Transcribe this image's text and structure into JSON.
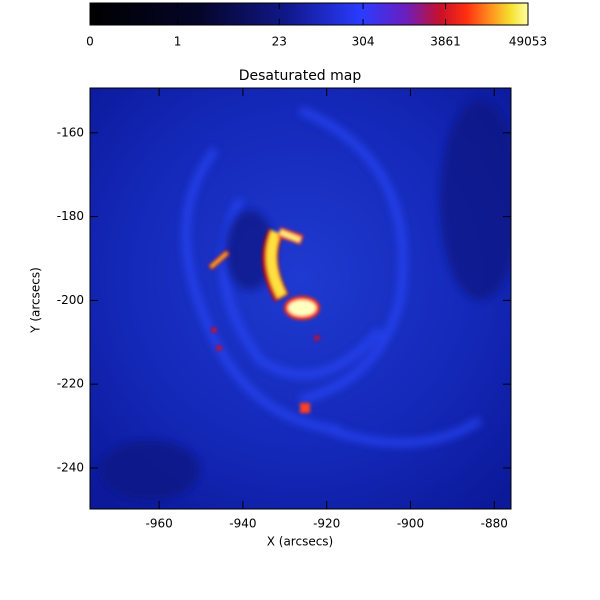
{
  "chart_data": {
    "type": "image-map",
    "title": "Desaturated map",
    "x_label": "X (arcsecs)",
    "y_label": "Y (arcsecs)",
    "xlim": [
      -976.5,
      -876.0
    ],
    "ylim": [
      -249.8,
      -149.3
    ],
    "xticks": [
      -960,
      -940,
      -920,
      -900,
      -880
    ],
    "yticks": [
      -240,
      -220,
      -200,
      -180,
      -160
    ],
    "colorbar": {
      "clim": [
        0,
        49053
      ],
      "ticks": [
        0,
        1,
        23,
        304,
        3861,
        49053
      ]
    }
  }
}
